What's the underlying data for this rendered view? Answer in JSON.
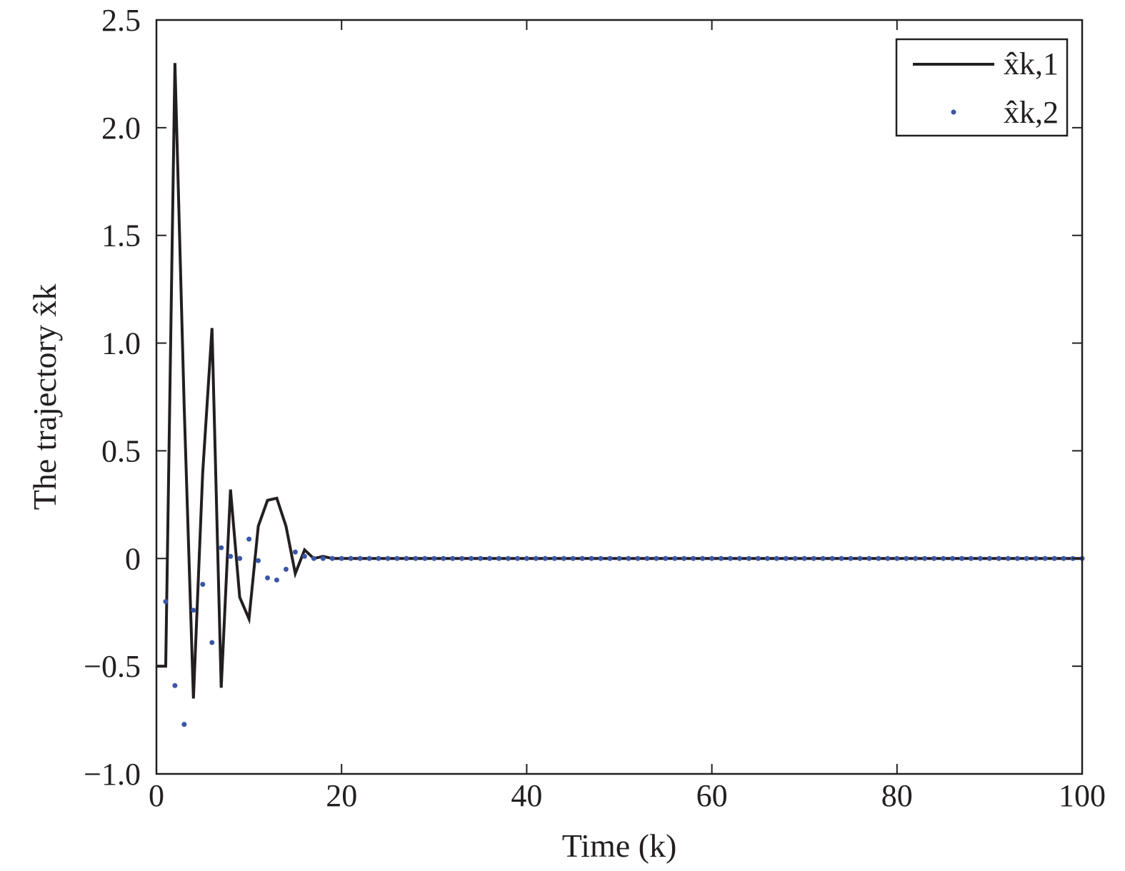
{
  "chart_data": {
    "type": "line",
    "xlabel": "Time (k)",
    "ylabel": "The trajectory x̂k",
    "xlim": [
      0,
      100
    ],
    "ylim": [
      -1.0,
      2.5
    ],
    "x_ticks": [
      "0",
      "20",
      "40",
      "60",
      "80",
      "100"
    ],
    "y_ticks": [
      "−1.0",
      "−0.5",
      "0",
      "0.5",
      "1.0",
      "1.5",
      "2.0",
      "2.5"
    ],
    "grid": false,
    "legend_position": "top-right",
    "series": [
      {
        "name": "x̂k,1",
        "style": "solid-line",
        "color": "#231f20",
        "x": [
          1,
          2,
          3,
          4,
          5,
          6,
          7,
          8,
          9,
          10,
          11,
          12,
          13,
          14,
          15,
          16,
          17,
          18,
          19,
          20,
          25,
          30,
          35,
          40,
          45,
          50,
          55,
          60,
          65,
          70,
          75,
          80,
          85,
          90,
          95,
          100
        ],
        "y": [
          -0.5,
          2.3,
          0.7,
          -0.65,
          0.4,
          1.07,
          -0.6,
          0.32,
          -0.18,
          -0.28,
          0.15,
          0.27,
          0.28,
          0.15,
          -0.07,
          0.04,
          0.0,
          0.01,
          0,
          0,
          0,
          0,
          0,
          0,
          0,
          0,
          0,
          0,
          0,
          0,
          0,
          0,
          0,
          0,
          0,
          0
        ]
      },
      {
        "name": "x̂k,2",
        "style": "dots",
        "color": "#3a56a8",
        "x": [
          1,
          2,
          3,
          4,
          5,
          6,
          7,
          8,
          9,
          10,
          11,
          12,
          13,
          14,
          15,
          16,
          17,
          18,
          19,
          20,
          21,
          22,
          23,
          24,
          25,
          26,
          27,
          28,
          29,
          30,
          31,
          32,
          33,
          34,
          35,
          36,
          37,
          38,
          39,
          40,
          41,
          42,
          43,
          44,
          45,
          46,
          47,
          48,
          49,
          50,
          51,
          52,
          53,
          54,
          55,
          56,
          57,
          58,
          59,
          60,
          61,
          62,
          63,
          64,
          65,
          66,
          67,
          68,
          69,
          70,
          71,
          72,
          73,
          74,
          75,
          76,
          77,
          78,
          79,
          80,
          81,
          82,
          83,
          84,
          85,
          86,
          87,
          88,
          89,
          90,
          91,
          92,
          93,
          94,
          95,
          96,
          97,
          98,
          99,
          100
        ],
        "y": [
          -0.2,
          -0.59,
          -0.77,
          -0.24,
          -0.12,
          -0.39,
          0.05,
          0.01,
          0.0,
          0.09,
          -0.01,
          -0.09,
          -0.1,
          -0.05,
          0.03,
          0.01,
          0,
          0,
          0,
          0,
          0,
          0,
          0,
          0,
          0,
          0,
          0,
          0,
          0,
          0,
          0,
          0,
          0,
          0,
          0,
          0,
          0,
          0,
          0,
          0,
          0,
          0,
          0,
          0,
          0,
          0,
          0,
          0,
          0,
          0,
          0,
          0,
          0,
          0,
          0,
          0,
          0,
          0,
          0,
          0,
          0,
          0,
          0,
          0,
          0,
          0,
          0,
          0,
          0,
          0,
          0,
          0,
          0,
          0,
          0,
          0,
          0,
          0,
          0,
          0,
          0,
          0,
          0,
          0,
          0,
          0,
          0,
          0,
          0,
          0,
          0,
          0,
          0,
          0,
          0,
          0,
          0,
          0,
          0,
          0
        ]
      }
    ]
  }
}
